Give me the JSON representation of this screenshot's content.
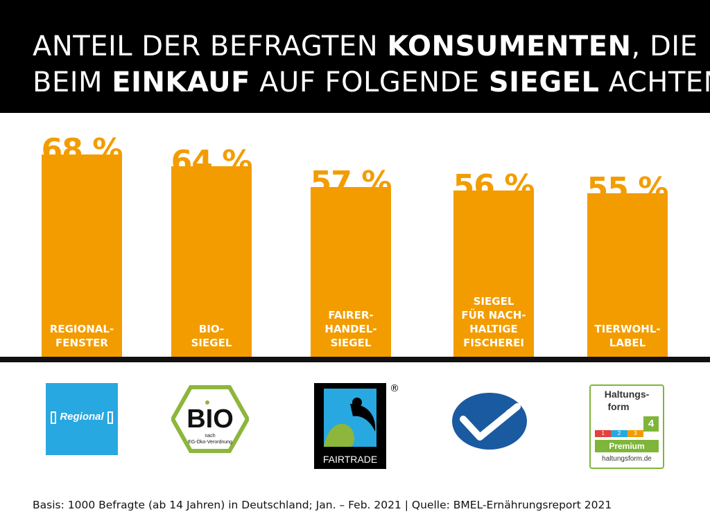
{
  "title": {
    "line1": [
      {
        "text": "ANTEIL DER BEFRAGTEN ",
        "bold": false
      },
      {
        "text": "KONSUMENTEN",
        "bold": true
      },
      {
        "text": ", DIE",
        "bold": false
      }
    ],
    "line2": [
      {
        "text": "BEIM ",
        "bold": false
      },
      {
        "text": "EINKAUF",
        "bold": true
      },
      {
        "text": " AUF FOLGENDE ",
        "bold": false
      },
      {
        "text": "SIEGEL",
        "bold": true
      },
      {
        "text": " ACHTEN",
        "bold": false
      }
    ]
  },
  "colors": {
    "bar": "#f39c00",
    "header": "#000000",
    "regional": "#28a8e0",
    "bio_green": "#8db63c",
    "msc_blue": "#1a5aa0",
    "haltungsform_green": "#7fb539"
  },
  "chart_data": {
    "type": "bar",
    "categories": [
      "REGIONAL-\nFENSTER",
      "BIO-\nSIEGEL",
      "FAIRER-\nHANDEL-\nSIEGEL",
      "SIEGEL\nFÜR NACH-\nHALTIGE\nFISCHEREI",
      "TIERWOHL-\nLABEL"
    ],
    "values": [
      68,
      64,
      57,
      56,
      55
    ],
    "value_labels": [
      "68 %",
      "64 %",
      "57 %",
      "56 %",
      "55 %"
    ],
    "unit": "%"
  },
  "logos": {
    "regional": {
      "text": "Regional",
      "icon": "regional-window-icon"
    },
    "bio": {
      "text": "BIO",
      "subtext_1": "nach",
      "subtext_2": "EG-Öko-Verordnung",
      "icon": "bio-hexagon-icon"
    },
    "fairtrade": {
      "text": "FAIRTRADE",
      "registered": "®",
      "icon": "fairtrade-person-icon"
    },
    "msc": {
      "icon": "msc-fish-checkmark-icon"
    },
    "haltungsform": {
      "title_1": "Haltungs-",
      "title_2": "form",
      "level": "4",
      "steps": [
        "1",
        "2",
        "3"
      ],
      "premium": "Premium",
      "url": "haltungsform.de",
      "step_colors": [
        "#e5403a",
        "#28a8e0",
        "#f39c00"
      ]
    }
  },
  "source": "Basis: 1000 Befragte (ab 14 Jahren) in Deutschland; Jan. – Feb. 2021 | Quelle: BMEL-Ernährungsreport 2021"
}
